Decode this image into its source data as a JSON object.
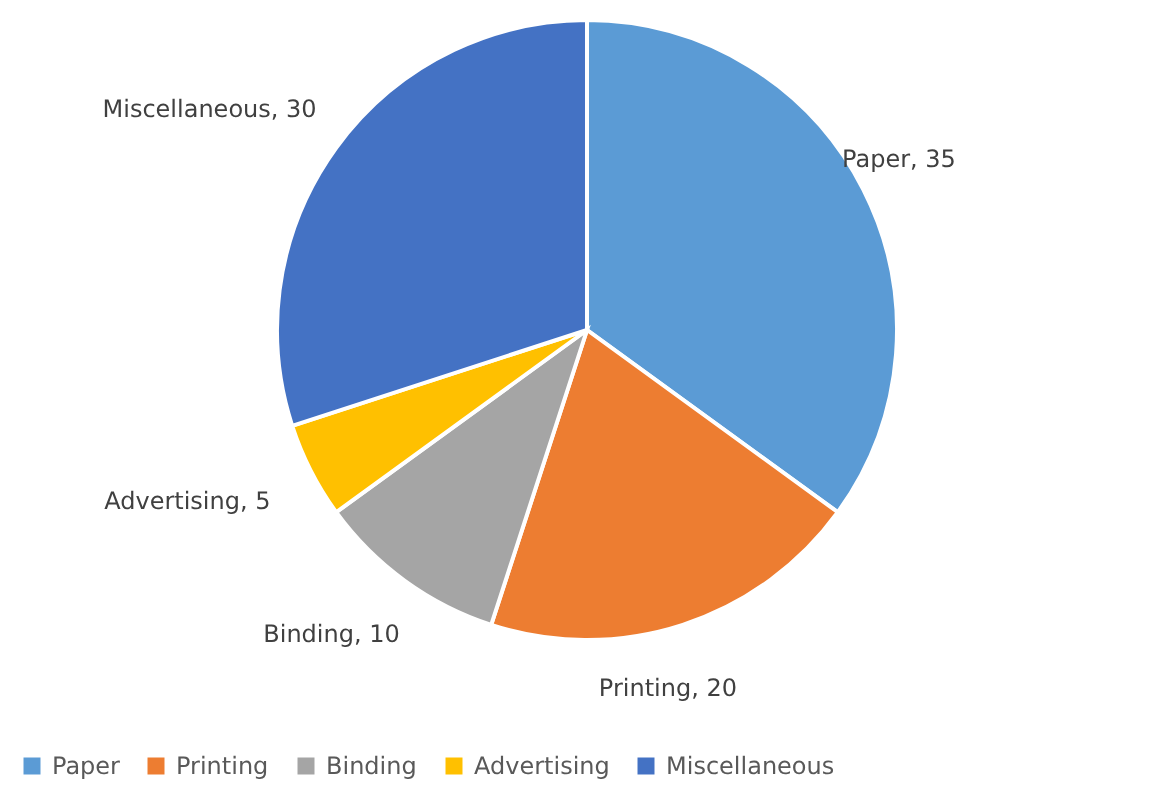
{
  "chart_data": {
    "type": "pie",
    "categories": [
      "Paper",
      "Printing",
      "Binding",
      "Advertising",
      "Miscellaneous"
    ],
    "values": [
      35,
      20,
      10,
      5,
      30
    ],
    "value_labels": [
      ", 35",
      ", 20",
      ", 10",
      ", 5",
      ", 30"
    ],
    "colors": [
      "#5b9bd5",
      "#ed7d31",
      "#a5a5a5",
      "#ffc000",
      "#4472c4"
    ],
    "legend": "bottom"
  }
}
